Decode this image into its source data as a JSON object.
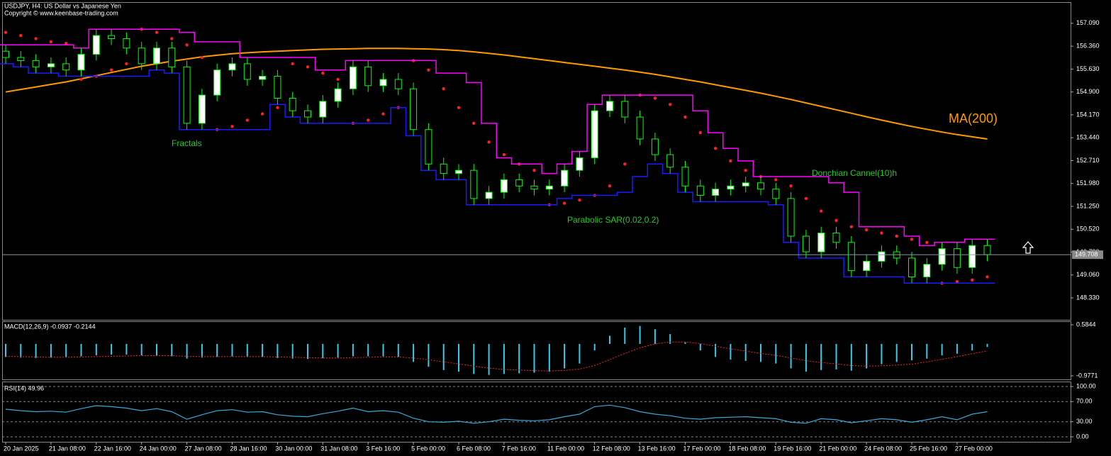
{
  "chart_data": [
    {
      "type": "candlestick",
      "title": "USDJPY, H4:  US Dollar vs Japanese Yen",
      "subtitle": "Copyright © www.keenbase-trading.com",
      "annotation": "Fractals",
      "categories": [
        "20 Jan 2025",
        null,
        null,
        "21 Jan 08:00",
        null,
        null,
        "22 Jan 16:00",
        null,
        null,
        "24 Jan 00:00",
        null,
        null,
        "27 Jan 08:00",
        null,
        null,
        "28 Jan 16:00",
        null,
        null,
        "30 Jan 00:00",
        null,
        null,
        "31 Jan 08:00",
        null,
        null,
        "3 Feb 16:00",
        null,
        null,
        "5 Feb 00:00",
        null,
        null,
        "6 Feb 08:00",
        null,
        null,
        "7 Feb 16:00",
        null,
        null,
        "11 Feb 00:00",
        null,
        null,
        "12 Feb 08:00",
        null,
        null,
        "13 Feb 16:00",
        null,
        null,
        "17 Feb 00:00",
        null,
        null,
        "18 Feb 08:00",
        null,
        null,
        "19 Feb 16:00",
        null,
        null,
        "21 Feb 00:00",
        null,
        null,
        "24 Feb 08:00",
        null,
        null,
        "25 Feb 16:00",
        null,
        null,
        "27 Feb 00:00",
        null,
        null
      ],
      "open": [
        156.2,
        156.0,
        155.9,
        155.7,
        155.8,
        155.6,
        156.1,
        156.7,
        156.6,
        156.3,
        155.8,
        156.3,
        155.7,
        153.9,
        154.8,
        155.6,
        155.8,
        155.3,
        155.4,
        154.7,
        154.3,
        154.1,
        154.6,
        155.0,
        155.7,
        155.1,
        155.3,
        155.0,
        153.7,
        152.6,
        152.3,
        152.4,
        151.5,
        151.7,
        152.1,
        151.9,
        151.8,
        151.9,
        152.4,
        152.8,
        154.3,
        154.6,
        154.1,
        153.4,
        152.9,
        152.5,
        151.9,
        151.6,
        151.8,
        151.9,
        152.0,
        151.8,
        151.5,
        150.3,
        149.8,
        150.4,
        150.1,
        149.2,
        149.5,
        149.8,
        149.6,
        149.0,
        149.4,
        149.9,
        149.3,
        150.0
      ],
      "high": [
        156.4,
        156.2,
        156.1,
        156.0,
        156.0,
        156.3,
        156.9,
        156.9,
        156.8,
        156.5,
        156.5,
        156.5,
        155.9,
        155.0,
        155.8,
        156.0,
        156.0,
        155.6,
        155.6,
        154.9,
        154.5,
        154.8,
        155.2,
        155.9,
        155.9,
        155.5,
        155.5,
        155.2,
        153.9,
        152.8,
        152.6,
        152.6,
        151.9,
        152.3,
        152.3,
        152.1,
        152.1,
        152.6,
        153.0,
        154.5,
        154.8,
        154.8,
        154.3,
        153.6,
        153.1,
        152.7,
        152.1,
        152.0,
        152.1,
        152.2,
        152.2,
        152.0,
        151.7,
        150.5,
        150.6,
        150.6,
        150.3,
        149.7,
        150.0,
        150.0,
        149.8,
        149.6,
        150.1,
        150.1,
        150.2,
        150.2
      ],
      "low": [
        155.8,
        155.7,
        155.5,
        155.5,
        155.4,
        155.4,
        155.9,
        156.4,
        156.1,
        155.6,
        155.6,
        155.5,
        153.7,
        153.7,
        154.6,
        155.4,
        155.1,
        155.1,
        154.5,
        154.1,
        153.9,
        153.9,
        154.4,
        154.8,
        154.9,
        154.9,
        154.8,
        153.5,
        152.4,
        152.1,
        152.1,
        151.3,
        151.3,
        151.5,
        151.7,
        151.6,
        151.6,
        151.7,
        152.2,
        152.6,
        154.1,
        153.9,
        153.2,
        152.7,
        152.3,
        151.7,
        151.4,
        151.4,
        151.6,
        151.7,
        151.6,
        151.3,
        150.1,
        149.6,
        149.6,
        149.9,
        149.0,
        149.0,
        149.3,
        149.4,
        148.8,
        148.8,
        149.2,
        149.1,
        149.1,
        149.5
      ],
      "close": [
        156.0,
        155.9,
        155.7,
        155.8,
        155.6,
        156.1,
        156.7,
        156.6,
        156.3,
        155.8,
        156.3,
        155.7,
        153.9,
        154.8,
        155.6,
        155.8,
        155.3,
        155.4,
        154.7,
        154.3,
        154.1,
        154.6,
        155.0,
        155.7,
        155.1,
        155.3,
        155.0,
        153.7,
        152.6,
        152.3,
        152.4,
        151.5,
        151.7,
        152.1,
        151.9,
        151.8,
        151.9,
        152.4,
        152.8,
        154.3,
        154.6,
        154.1,
        153.4,
        152.9,
        152.5,
        151.9,
        151.6,
        151.8,
        151.9,
        152.0,
        151.8,
        151.5,
        150.3,
        149.8,
        150.4,
        150.1,
        149.2,
        149.5,
        149.8,
        149.6,
        149.0,
        149.4,
        149.9,
        149.3,
        150.0,
        149.71
      ],
      "bull_color": "#ffffff",
      "bear_color": "#000000",
      "wick_color": "#00ff00",
      "overlays": [
        {
          "name": "MA(200)",
          "color": "#ff9900",
          "style": "line",
          "values": [
            154.9,
            154.98,
            155.06,
            155.14,
            155.22,
            155.32,
            155.42,
            155.52,
            155.62,
            155.72,
            155.8,
            155.88,
            155.95,
            156.02,
            156.07,
            156.12,
            156.15,
            156.18,
            156.2,
            156.22,
            156.24,
            156.26,
            156.27,
            156.28,
            156.29,
            156.29,
            156.29,
            156.28,
            156.27,
            156.25,
            156.22,
            156.18,
            156.13,
            156.08,
            156.02,
            155.96,
            155.9,
            155.84,
            155.78,
            155.72,
            155.66,
            155.6,
            155.53,
            155.46,
            155.38,
            155.3,
            155.22,
            155.13,
            155.04,
            154.95,
            154.86,
            154.76,
            154.66,
            154.55,
            154.44,
            154.33,
            154.22,
            154.11,
            154.0,
            153.9,
            153.8,
            153.71,
            153.62,
            153.54,
            153.47,
            153.4
          ]
        },
        {
          "name": "Parabolic SAR(0.02,0.2)",
          "color": "#ff2020",
          "style": "dots",
          "values": [
            156.8,
            156.7,
            156.6,
            156.5,
            156.45,
            155.3,
            155.4,
            155.6,
            155.8,
            156.9,
            156.8,
            156.6,
            156.4,
            156.0,
            153.7,
            153.8,
            154.0,
            154.2,
            154.4,
            155.8,
            155.7,
            155.5,
            155.3,
            153.9,
            154.0,
            154.2,
            154.4,
            155.9,
            155.6,
            155.0,
            154.4,
            153.9,
            153.3,
            152.9,
            152.6,
            152.4,
            151.3,
            151.35,
            151.45,
            151.6,
            151.9,
            152.6,
            154.8,
            154.7,
            154.5,
            154.1,
            153.6,
            153.1,
            152.7,
            152.4,
            152.2,
            152.1,
            151.9,
            151.5,
            151.1,
            150.8,
            150.6,
            150.5,
            150.4,
            150.3,
            150.2,
            150.1,
            148.8,
            148.85,
            148.9,
            149.0
          ]
        },
        {
          "name": "Donchian Cannel(10)h",
          "style": "channel",
          "upper": {
            "color": "#ff00ff",
            "values": [
              156.4,
              156.4,
              156.4,
              156.4,
              156.4,
              156.3,
              156.9,
              156.9,
              156.9,
              156.9,
              156.9,
              156.9,
              156.8,
              156.5,
              156.5,
              156.5,
              156.0,
              156.0,
              156.0,
              156.0,
              156.0,
              155.6,
              155.6,
              155.9,
              155.9,
              155.9,
              155.9,
              155.9,
              155.9,
              155.5,
              155.5,
              155.2,
              153.9,
              152.8,
              152.6,
              152.6,
              152.3,
              152.6,
              153.0,
              154.5,
              154.8,
              154.8,
              154.8,
              154.8,
              154.8,
              154.8,
              154.3,
              153.6,
              153.1,
              152.7,
              152.2,
              152.2,
              152.2,
              152.2,
              152.2,
              152.0,
              151.7,
              150.6,
              150.6,
              150.6,
              150.3,
              150.0,
              150.1,
              150.1,
              150.2,
              150.2
            ]
          },
          "lower": {
            "color": "#1a1aff",
            "values": [
              155.8,
              155.7,
              155.5,
              155.5,
              155.4,
              155.4,
              155.4,
              155.4,
              155.4,
              155.4,
              155.6,
              155.5,
              153.7,
              153.7,
              153.7,
              153.7,
              153.7,
              153.7,
              154.5,
              154.1,
              153.9,
              153.9,
              153.9,
              153.9,
              153.9,
              153.9,
              154.4,
              153.5,
              152.4,
              152.1,
              152.1,
              151.3,
              151.3,
              151.3,
              151.3,
              151.3,
              151.3,
              151.5,
              151.6,
              151.6,
              151.6,
              151.7,
              152.2,
              152.6,
              152.3,
              151.7,
              151.4,
              151.4,
              151.4,
              151.4,
              151.4,
              151.3,
              150.1,
              149.6,
              149.6,
              149.6,
              149.0,
              149.0,
              149.0,
              149.0,
              148.8,
              148.8,
              148.8,
              148.8,
              148.8,
              148.8
            ]
          }
        }
      ],
      "current_price": 149.708,
      "ylim": [
        147.63,
        157.72
      ],
      "yticks": [
        {
          "value": 157.09,
          "label": "157.090"
        },
        {
          "value": 156.36,
          "label": "156.360"
        },
        {
          "value": 155.63,
          "label": "155.630"
        },
        {
          "value": 154.9,
          "label": "154.900"
        },
        {
          "value": 154.17,
          "label": "154.170"
        },
        {
          "value": 153.44,
          "label": "153.440"
        },
        {
          "value": 152.71,
          "label": "152.710"
        },
        {
          "value": 151.98,
          "label": "151.980"
        },
        {
          "value": 151.25,
          "label": "151.250"
        },
        {
          "value": 150.52,
          "label": "150.520"
        },
        {
          "value": 149.79,
          "label": "149.790"
        },
        {
          "value": 149.06,
          "label": "149.060"
        },
        {
          "value": 148.33,
          "label": "148.330"
        }
      ]
    },
    {
      "type": "macd",
      "title": "MACD(12,26,9) -0.0937 -0.2144",
      "histogram": {
        "color": "#33ccee",
        "values": [
          -0.4,
          -0.42,
          -0.43,
          -0.42,
          -0.4,
          -0.38,
          -0.35,
          -0.33,
          -0.33,
          -0.35,
          -0.36,
          -0.38,
          -0.45,
          -0.42,
          -0.4,
          -0.38,
          -0.4,
          -0.4,
          -0.43,
          -0.45,
          -0.46,
          -0.44,
          -0.42,
          -0.38,
          -0.38,
          -0.38,
          -0.4,
          -0.55,
          -0.7,
          -0.8,
          -0.85,
          -0.92,
          -0.95,
          -0.92,
          -0.9,
          -0.88,
          -0.85,
          -0.75,
          -0.6,
          -0.2,
          0.25,
          0.5,
          0.55,
          0.45,
          0.3,
          0.05,
          -0.2,
          -0.4,
          -0.48,
          -0.52,
          -0.55,
          -0.6,
          -0.75,
          -0.85,
          -0.8,
          -0.78,
          -0.82,
          -0.75,
          -0.62,
          -0.55,
          -0.5,
          -0.45,
          -0.35,
          -0.3,
          -0.2,
          -0.0937
        ]
      },
      "signal": {
        "color": "#ff2020",
        "values": [
          -0.38,
          -0.39,
          -0.4,
          -0.41,
          -0.41,
          -0.4,
          -0.39,
          -0.38,
          -0.37,
          -0.36,
          -0.36,
          -0.36,
          -0.38,
          -0.39,
          -0.39,
          -0.39,
          -0.39,
          -0.39,
          -0.4,
          -0.41,
          -0.42,
          -0.43,
          -0.43,
          -0.42,
          -0.41,
          -0.4,
          -0.4,
          -0.43,
          -0.48,
          -0.55,
          -0.61,
          -0.68,
          -0.74,
          -0.78,
          -0.8,
          -0.82,
          -0.83,
          -0.81,
          -0.77,
          -0.66,
          -0.48,
          -0.29,
          -0.12,
          0.0,
          0.06,
          0.06,
          0.01,
          -0.07,
          -0.15,
          -0.22,
          -0.29,
          -0.35,
          -0.43,
          -0.51,
          -0.57,
          -0.61,
          -0.66,
          -0.68,
          -0.67,
          -0.65,
          -0.62,
          -0.55,
          -0.47,
          -0.39,
          -0.3,
          -0.2144
        ]
      },
      "ylim": [
        -1.086,
        0.693
      ],
      "yticks": [
        0.5844,
        -0.9771
      ]
    },
    {
      "type": "line",
      "title": "RSI(14) 49.96",
      "color": "#3aa8d8",
      "values": [
        55,
        52,
        50,
        51,
        49,
        56,
        62,
        60,
        57,
        52,
        56,
        50,
        35,
        44,
        52,
        54,
        49,
        50,
        44,
        41,
        40,
        46,
        51,
        57,
        50,
        52,
        49,
        37,
        30,
        29,
        31,
        27,
        30,
        35,
        33,
        32,
        34,
        40,
        45,
        60,
        63,
        58,
        50,
        45,
        42,
        37,
        35,
        38,
        39,
        40,
        38,
        36,
        29,
        27,
        36,
        34,
        28,
        32,
        36,
        34,
        29,
        34,
        40,
        34,
        45,
        49.96
      ],
      "ylim": [
        -9.9,
        109.9
      ],
      "yticks": [
        {
          "value": 100,
          "label": "100.00"
        },
        {
          "value": 70,
          "label": "70.00"
        },
        {
          "value": 30,
          "label": "30.00"
        },
        {
          "value": 0,
          "label": "0.00"
        }
      ],
      "grid": true
    }
  ]
}
